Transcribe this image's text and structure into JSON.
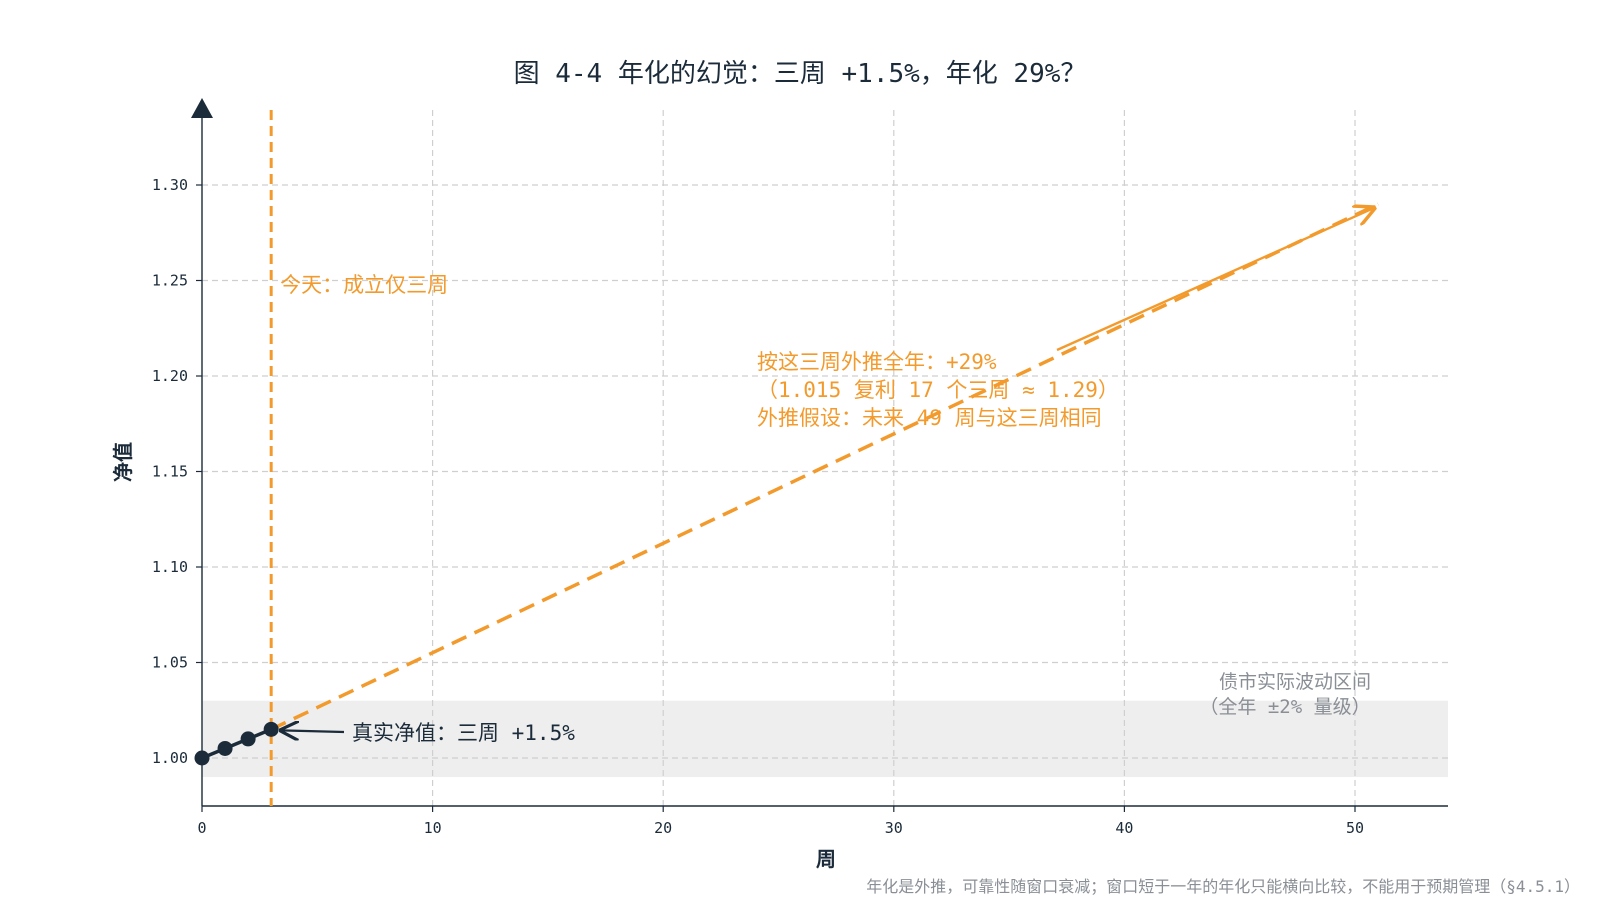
{
  "chart_data": {
    "type": "line",
    "title": "图 4-4 年化的幻觉：三周 +1.5%，年化 29%？",
    "xlabel": "周",
    "ylabel": "净值",
    "xlim": [
      0,
      54
    ],
    "ylim": [
      0.975,
      1.335
    ],
    "x_ticks": [
      0,
      10,
      20,
      30,
      40,
      50
    ],
    "y_ticks": [
      1.0,
      1.05,
      1.1,
      1.15,
      1.2,
      1.25,
      1.3
    ],
    "grid": true,
    "series": [
      {
        "style": "solid line with markers",
        "color": "#1b2b3a",
        "x": [
          0,
          1,
          2,
          3
        ],
        "y": [
          1.0,
          1.005,
          1.01,
          1.015
        ]
      },
      {
        "style": "dashed line with arrowhead",
        "color": "#f39a2c",
        "x": [
          3,
          51
        ],
        "y": [
          1.015,
          1.29
        ]
      }
    ],
    "vertical_line": {
      "x": 3,
      "color": "#f39a2c",
      "label": "今天：成立仅三周"
    },
    "shaded_band": {
      "y_range": [
        0.99,
        1.03
      ],
      "color": "#eeeeee",
      "label_lines": [
        "债市实际波动区间",
        "（全年 ±2% 量级）"
      ]
    },
    "annotations": [
      {
        "text_lines": [
          "按这三周外推全年：+29%",
          "（1.015 复利 17 个三周 ≈ 1.29）",
          "外推假设：未来 49 周与这三周相同"
        ],
        "color": "#f39a2c",
        "arrow_to": {
          "x": 51,
          "y": 1.288
        }
      },
      {
        "text": "真实净值：三周 +1.5%",
        "color": "#1b2b3a",
        "arrow_to": {
          "x": 3,
          "y": 1.015
        }
      }
    ],
    "footnote": "年化是外推，可靠性随窗口衰减；窗口短于一年的年化只能横向比较，不能用于预期管理（§4.5.1）"
  }
}
